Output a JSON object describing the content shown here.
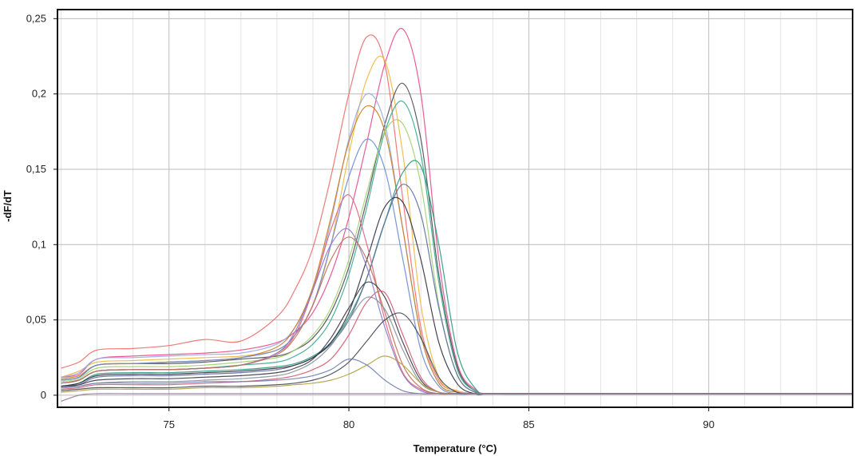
{
  "chart_data": {
    "type": "line",
    "title": "",
    "xlabel": "Temperature (°C)",
    "ylabel": "-dF/dT",
    "xlim": [
      71.9,
      94
    ],
    "ylim": [
      -0.008,
      0.256
    ],
    "x_ticks": [
      75,
      80,
      85,
      90
    ],
    "x_tick_labels": [
      "75",
      "80",
      "85",
      "90"
    ],
    "y_ticks": [
      0,
      0.05,
      0.1,
      0.15,
      0.2,
      0.25
    ],
    "y_tick_labels": [
      "0",
      "0,05",
      "0,1",
      "0,15",
      "0,2",
      "0,25"
    ],
    "grid": true,
    "legend": "none",
    "x_sample": [
      72,
      72.5,
      73,
      74,
      75,
      76,
      77,
      78,
      78.5,
      79,
      79.5,
      80,
      80.5,
      81,
      81.5,
      82,
      82.5,
      83,
      83.5,
      84,
      86,
      88,
      90,
      92,
      94
    ],
    "series": [
      {
        "color": "#f06a6a",
        "values": [
          0.018,
          0.022,
          0.03,
          0.031,
          0.033,
          0.037,
          0.036,
          0.052,
          0.07,
          0.098,
          0.145,
          0.2,
          0.238,
          0.22,
          0.13,
          0.045,
          0.01,
          0.003,
          0.001,
          0.001,
          0.001,
          0.001,
          0.001,
          0.001,
          0.001
        ]
      },
      {
        "color": "#e84a8a",
        "values": [
          0.012,
          0.014,
          0.024,
          0.026,
          0.027,
          0.028,
          0.03,
          0.035,
          0.042,
          0.055,
          0.08,
          0.118,
          0.168,
          0.22,
          0.243,
          0.2,
          0.09,
          0.022,
          0.004,
          0.001,
          0.001,
          0.001,
          0.001,
          0.001,
          0.001
        ]
      },
      {
        "color": "#f0b840",
        "values": [
          0.012,
          0.016,
          0.022,
          0.023,
          0.024,
          0.025,
          0.026,
          0.03,
          0.04,
          0.06,
          0.1,
          0.16,
          0.21,
          0.222,
          0.16,
          0.06,
          0.012,
          0.003,
          0.001,
          0.001,
          0.001,
          0.001,
          0.001,
          0.001,
          0.001
        ]
      },
      {
        "color": "#4a4a58",
        "values": [
          0.01,
          0.012,
          0.02,
          0.021,
          0.021,
          0.022,
          0.024,
          0.026,
          0.03,
          0.038,
          0.055,
          0.085,
          0.13,
          0.18,
          0.207,
          0.17,
          0.08,
          0.02,
          0.003,
          0.001,
          0.001,
          0.001,
          0.001,
          0.001,
          0.001
        ]
      },
      {
        "color": "#9aa8e0",
        "values": [
          0.012,
          0.015,
          0.024,
          0.025,
          0.026,
          0.027,
          0.028,
          0.034,
          0.045,
          0.07,
          0.115,
          0.17,
          0.2,
          0.18,
          0.11,
          0.04,
          0.008,
          0.002,
          0.001,
          0.001,
          0.001,
          0.001,
          0.001,
          0.001,
          0.001
        ]
      },
      {
        "color": "#3aa888",
        "values": [
          0.008,
          0.01,
          0.016,
          0.017,
          0.017,
          0.018,
          0.02,
          0.022,
          0.026,
          0.034,
          0.05,
          0.08,
          0.125,
          0.175,
          0.195,
          0.16,
          0.075,
          0.018,
          0.003,
          0.001,
          0.001,
          0.001,
          0.001,
          0.001,
          0.001
        ]
      },
      {
        "color": "#c88020",
        "values": [
          0.011,
          0.013,
          0.02,
          0.021,
          0.022,
          0.023,
          0.025,
          0.032,
          0.045,
          0.072,
          0.118,
          0.168,
          0.192,
          0.175,
          0.11,
          0.04,
          0.008,
          0.002,
          0.001,
          0.001,
          0.001,
          0.001,
          0.001,
          0.001,
          0.001
        ]
      },
      {
        "color": "#a0d070",
        "values": [
          0.009,
          0.011,
          0.018,
          0.019,
          0.019,
          0.02,
          0.022,
          0.025,
          0.03,
          0.04,
          0.058,
          0.09,
          0.135,
          0.175,
          0.18,
          0.14,
          0.06,
          0.014,
          0.002,
          0.001,
          0.001,
          0.001,
          0.001,
          0.001,
          0.001
        ]
      },
      {
        "color": "#2a9a7a",
        "values": [
          0.006,
          0.008,
          0.014,
          0.015,
          0.015,
          0.016,
          0.017,
          0.019,
          0.021,
          0.026,
          0.035,
          0.052,
          0.078,
          0.115,
          0.148,
          0.152,
          0.1,
          0.03,
          0.005,
          0.001,
          0.001,
          0.001,
          0.001,
          0.001,
          0.001
        ]
      },
      {
        "color": "#5a6a9a",
        "values": [
          0.005,
          0.007,
          0.012,
          0.013,
          0.013,
          0.014,
          0.015,
          0.017,
          0.02,
          0.025,
          0.034,
          0.05,
          0.078,
          0.115,
          0.14,
          0.12,
          0.058,
          0.014,
          0.002,
          0.001,
          0.001,
          0.001,
          0.001,
          0.001,
          0.001
        ]
      },
      {
        "color": "#303040",
        "values": [
          0.006,
          0.008,
          0.013,
          0.014,
          0.014,
          0.015,
          0.016,
          0.018,
          0.02,
          0.025,
          0.035,
          0.055,
          0.09,
          0.125,
          0.128,
          0.09,
          0.035,
          0.008,
          0.001,
          0.001,
          0.001,
          0.001,
          0.001,
          0.001,
          0.001
        ]
      },
      {
        "color": "#6a8ad0",
        "values": [
          0.01,
          0.012,
          0.02,
          0.021,
          0.022,
          0.023,
          0.025,
          0.03,
          0.04,
          0.06,
          0.1,
          0.145,
          0.17,
          0.15,
          0.09,
          0.03,
          0.006,
          0.001,
          0.001,
          0.001,
          0.001,
          0.001,
          0.001,
          0.001,
          0.001
        ]
      },
      {
        "color": "#e06080",
        "values": [
          0.008,
          0.01,
          0.016,
          0.017,
          0.017,
          0.018,
          0.02,
          0.028,
          0.04,
          0.07,
          0.11,
          0.133,
          0.1,
          0.05,
          0.015,
          0.004,
          0.001,
          0.001,
          0.001,
          0.001,
          0.001,
          0.001,
          0.001,
          0.001,
          0.001
        ]
      },
      {
        "color": "#8a7ac8",
        "values": [
          0.008,
          0.01,
          0.016,
          0.017,
          0.017,
          0.018,
          0.02,
          0.028,
          0.042,
          0.07,
          0.1,
          0.11,
          0.085,
          0.045,
          0.014,
          0.003,
          0.001,
          0.001,
          0.001,
          0.001,
          0.001,
          0.001,
          0.001,
          0.001,
          0.001
        ]
      },
      {
        "color": "#b87050",
        "values": [
          0.008,
          0.01,
          0.016,
          0.017,
          0.017,
          0.018,
          0.02,
          0.027,
          0.038,
          0.06,
          0.09,
          0.105,
          0.09,
          0.055,
          0.02,
          0.005,
          0.001,
          0.001,
          0.001,
          0.001,
          0.001,
          0.001,
          0.001,
          0.001,
          0.001
        ]
      },
      {
        "color": "#3a3a48",
        "values": [
          0.006,
          0.007,
          0.01,
          0.011,
          0.011,
          0.012,
          0.013,
          0.015,
          0.018,
          0.024,
          0.038,
          0.058,
          0.075,
          0.065,
          0.035,
          0.01,
          0.002,
          0.001,
          0.001,
          0.001,
          0.001,
          0.001,
          0.001,
          0.001,
          0.001
        ]
      },
      {
        "color": "#8890a0",
        "values": [
          0.005,
          0.006,
          0.008,
          0.009,
          0.009,
          0.01,
          0.011,
          0.013,
          0.016,
          0.022,
          0.033,
          0.05,
          0.065,
          0.057,
          0.03,
          0.008,
          0.002,
          0.001,
          0.001,
          0.001,
          0.001,
          0.001,
          0.001,
          0.001,
          0.001
        ]
      },
      {
        "color": "#d05a70",
        "values": [
          0.004,
          0.005,
          0.007,
          0.007,
          0.007,
          0.008,
          0.009,
          0.011,
          0.013,
          0.017,
          0.024,
          0.04,
          0.062,
          0.068,
          0.04,
          0.012,
          0.002,
          0.001,
          0.001,
          0.001,
          0.001,
          0.001,
          0.001,
          0.001,
          0.001
        ]
      },
      {
        "color": "#404858",
        "values": [
          0.003,
          0.004,
          0.005,
          0.005,
          0.005,
          0.006,
          0.006,
          0.007,
          0.008,
          0.01,
          0.014,
          0.022,
          0.036,
          0.05,
          0.054,
          0.038,
          0.012,
          0.002,
          0.001,
          0.001,
          0.001,
          0.001,
          0.001,
          0.001,
          0.001
        ]
      },
      {
        "color": "#b0a040",
        "values": [
          0.002,
          0.003,
          0.004,
          0.004,
          0.004,
          0.005,
          0.005,
          0.006,
          0.007,
          0.008,
          0.01,
          0.014,
          0.02,
          0.026,
          0.02,
          0.008,
          0.002,
          0.001,
          0.001,
          0.001,
          0.001,
          0.001,
          0.001,
          0.001,
          0.001
        ]
      },
      {
        "color": "#7080b0",
        "values": [
          0.005,
          0.006,
          0.008,
          0.008,
          0.008,
          0.009,
          0.009,
          0.01,
          0.011,
          0.013,
          0.017,
          0.024,
          0.02,
          0.01,
          0.003,
          0.001,
          0.001,
          0.001,
          0.001,
          0.001,
          0.001,
          0.001,
          0.001,
          0.001,
          0.001
        ]
      },
      {
        "color": "#907a9a",
        "values": [
          -0.004,
          0.0,
          0.001,
          0.001,
          0.001,
          0.001,
          0.001,
          0.001,
          0.001,
          0.001,
          0.001,
          0.001,
          0.001,
          0.001,
          0.001,
          0.001,
          0.001,
          0.001,
          0.001,
          0.001,
          0.001,
          0.001,
          0.001,
          0.001,
          0.001
        ]
      }
    ]
  }
}
